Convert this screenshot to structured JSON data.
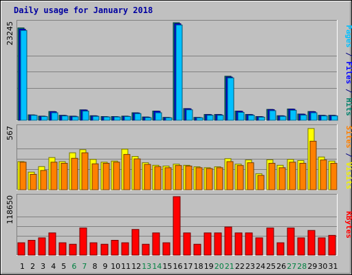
{
  "chart_data": {
    "type": "bar",
    "title": "Daily usage for January 2018",
    "categories": [
      "1",
      "2",
      "3",
      "4",
      "5",
      "6",
      "7",
      "8",
      "9",
      "10",
      "11",
      "12",
      "13",
      "14",
      "15",
      "16",
      "17",
      "18",
      "19",
      "20",
      "21",
      "22",
      "23",
      "24",
      "25",
      "26",
      "27",
      "28",
      "29",
      "30",
      "31"
    ],
    "weekend_days": [
      "6",
      "7",
      "13",
      "14",
      "20",
      "21",
      "27",
      "28"
    ],
    "panels": [
      {
        "name": "pages-files-hits",
        "ymax_label": "23245",
        "ylim": [
          0,
          23245
        ],
        "ylabel_parts": [
          {
            "text": "Pages",
            "color": "#00c0ff"
          },
          {
            "text": " / ",
            "color": "#000080"
          },
          {
            "text": "Files",
            "color": "#0000ff"
          },
          {
            "text": " / ",
            "color": "#000080"
          },
          {
            "text": "Hits",
            "color": "#00806a"
          }
        ],
        "series": [
          {
            "name": "Hits",
            "color": "#008080",
            "values": [
              22000,
              1300,
              1000,
              2100,
              1200,
              1000,
              2500,
              1100,
              900,
              900,
              1000,
              1800,
              800,
              2200,
              700,
              23245,
              2800,
              700,
              1400,
              1400,
              10500,
              2200,
              1400,
              900,
              2600,
              1100,
              2700,
              1500,
              2100,
              1200,
              1200
            ]
          },
          {
            "name": "Files",
            "color": "#0000ff",
            "values": [
              21700,
              1250,
              950,
              2050,
              1150,
              950,
              2450,
              1050,
              850,
              850,
              950,
              1750,
              750,
              2150,
              650,
              23000,
              2750,
              650,
              1350,
              1350,
              10300,
              2150,
              1350,
              850,
              2550,
              1050,
              2650,
              1450,
              2050,
              1150,
              1150
            ]
          },
          {
            "name": "Pages",
            "color": "#00c0ff",
            "values": [
              21400,
              1200,
              900,
              1800,
              1050,
              850,
              2200,
              950,
              800,
              800,
              900,
              1600,
              650,
              1800,
              600,
              22700,
              2500,
              600,
              1200,
              1200,
              10100,
              1900,
              1200,
              750,
              2300,
              950,
              2400,
              1250,
              1800,
              1050,
              1050
            ]
          }
        ]
      },
      {
        "name": "visits-sites",
        "ymax_label": "567",
        "ylim": [
          0,
          567
        ],
        "ylabel_parts": [
          {
            "text": "Sites",
            "color": "#ff8000"
          },
          {
            "text": " / ",
            "color": "#000080"
          },
          {
            "text": "Visits",
            "color": "#f0f000"
          }
        ],
        "series": [
          {
            "name": "Visits",
            "color": "#ffff00",
            "values": [
              255,
              160,
              210,
              292,
              255,
              335,
              363,
              275,
              250,
              260,
              368,
              302,
              245,
              222,
              215,
              232,
              222,
              208,
              200,
              208,
              282,
              232,
              270,
              145,
              272,
              222,
              275,
              265,
              555,
              297,
              260
            ]
          },
          {
            "name": "Sites",
            "color": "#ff8000",
            "values": [
              250,
              140,
              175,
              250,
              240,
              285,
              335,
              235,
              240,
              250,
              320,
              280,
              230,
              210,
              200,
              220,
              215,
              200,
              192,
              200,
              255,
              220,
              245,
              130,
              240,
              200,
              250,
              240,
              440,
              270,
              240
            ]
          }
        ]
      },
      {
        "name": "kbytes",
        "ymax_label": "118650",
        "ylim": [
          0,
          118650
        ],
        "ylabel_parts": [
          {
            "text": "KBytes",
            "color": "#ff0000"
          }
        ],
        "series": [
          {
            "name": "KBytes",
            "color": "#ff0000",
            "values": [
              25000,
              30000,
              35000,
              45000,
              25000,
              22000,
              55000,
              25000,
              22000,
              30000,
              25000,
              52000,
              22000,
              45000,
              25000,
              118650,
              45000,
              22000,
              45000,
              45000,
              57000,
              45000,
              45000,
              35000,
              55000,
              25000,
              55000,
              35000,
              50000,
              35000,
              40000
            ]
          }
        ]
      }
    ]
  }
}
